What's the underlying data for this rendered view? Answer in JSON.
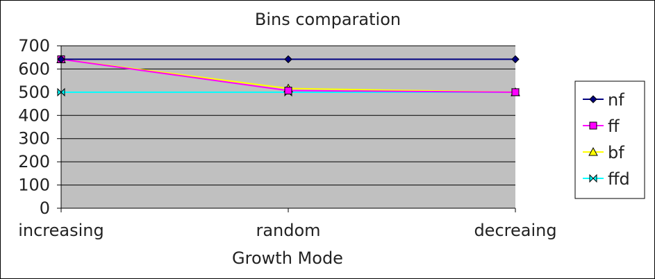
{
  "chart_data": {
    "type": "line",
    "title": "Bins comparation",
    "xlabel": "Growth Mode",
    "ylabel": "",
    "categories": [
      "increasing",
      "random",
      "decreaing"
    ],
    "ylim": [
      0,
      700
    ],
    "yticks": [
      0,
      100,
      200,
      300,
      400,
      500,
      600,
      700
    ],
    "grid": true,
    "legend_position": "right",
    "plot_background": "#c0c0c0",
    "series": [
      {
        "name": "nf",
        "values": [
          642,
          642,
          642
        ],
        "color": "#000080",
        "marker": "diamond"
      },
      {
        "name": "ff",
        "values": [
          642,
          507,
          500
        ],
        "color": "#ff00ff",
        "marker": "square"
      },
      {
        "name": "bf",
        "values": [
          642,
          516,
          500
        ],
        "color": "#ffff00",
        "marker": "triangle"
      },
      {
        "name": "ffd",
        "values": [
          500,
          500,
          500
        ],
        "color": "#00ffff",
        "marker": "bowtie"
      }
    ]
  }
}
